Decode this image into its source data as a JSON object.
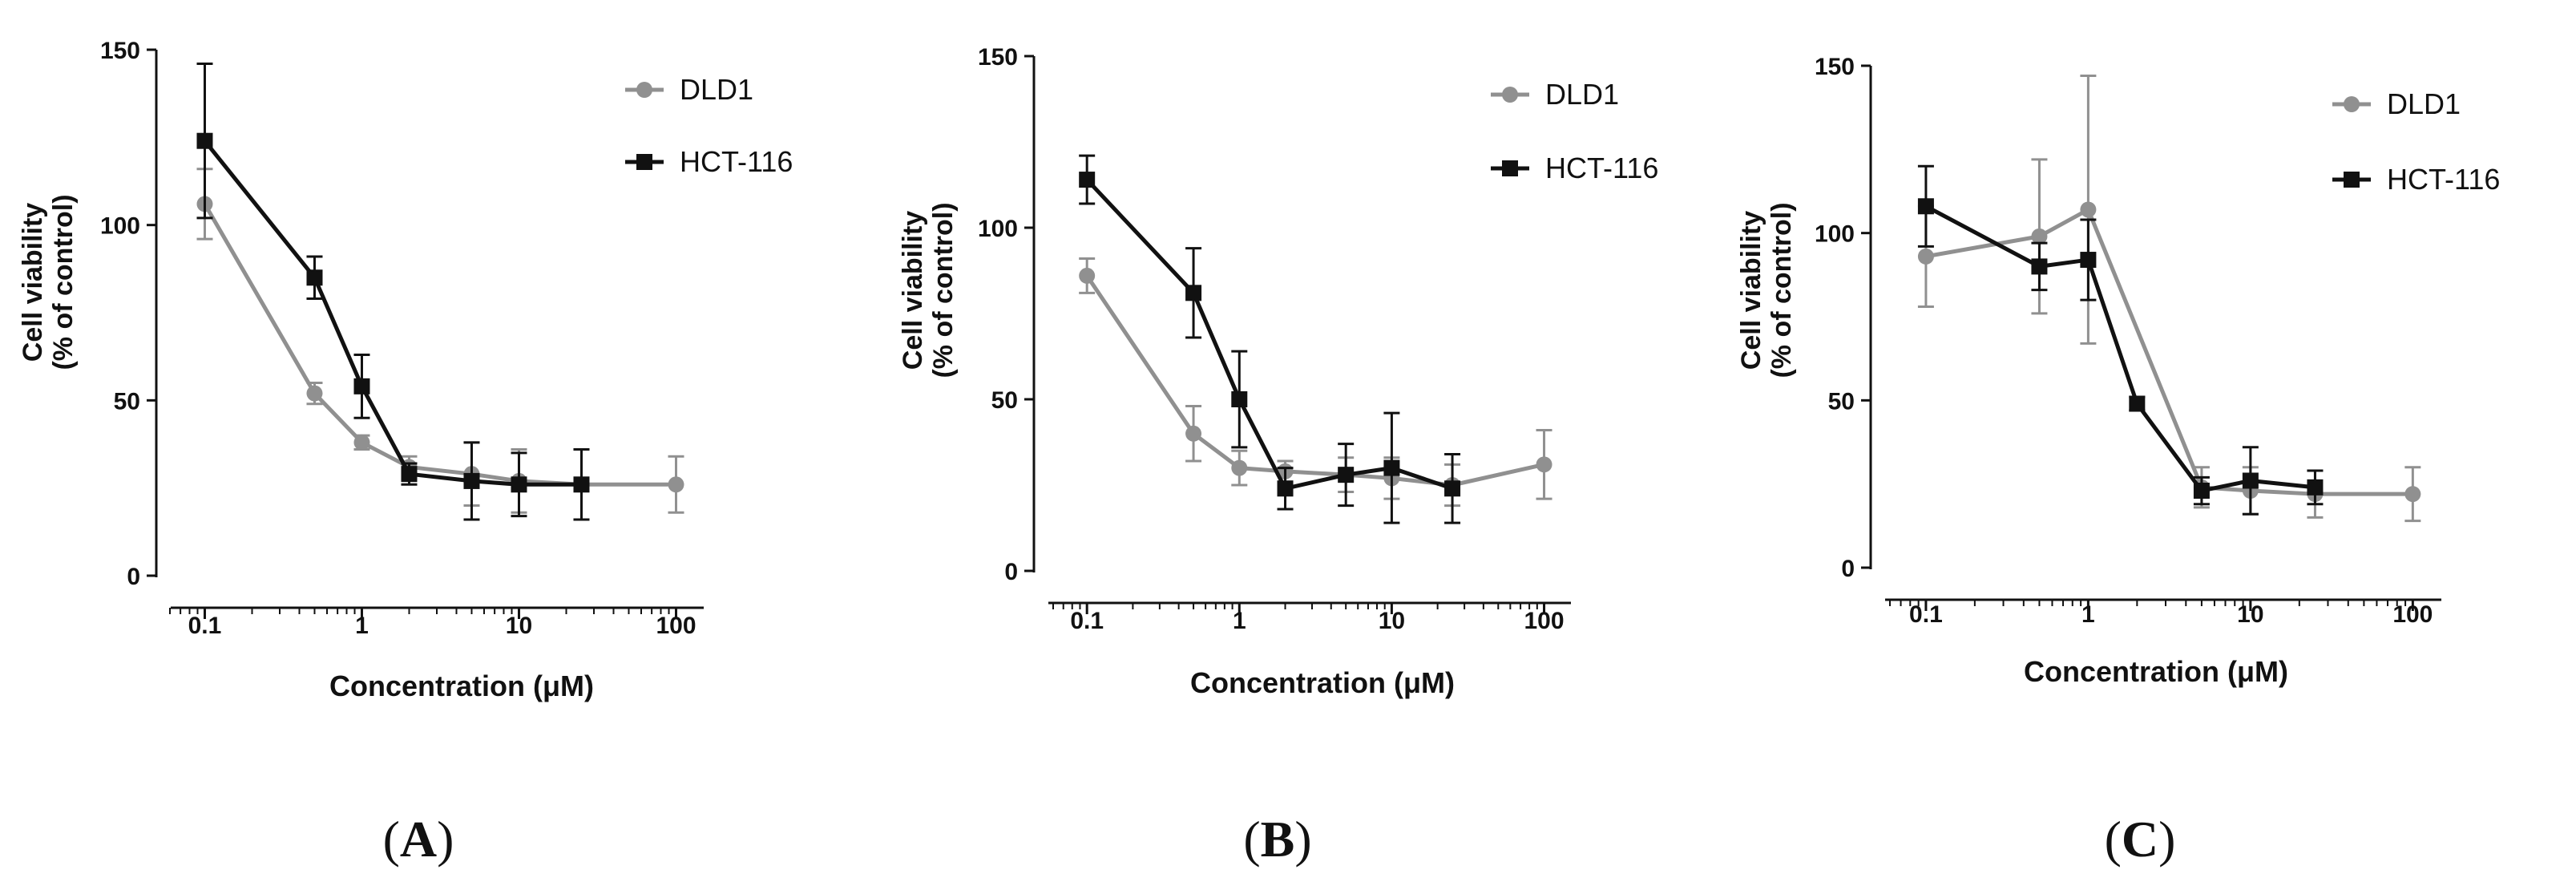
{
  "figure": {
    "styles": {
      "DLD1": {
        "color": "#909090",
        "marker": "circle"
      },
      "HCT-116": {
        "color": "#111111",
        "marker": "square"
      }
    }
  },
  "chart_data": [
    {
      "type": "line",
      "panel_label_open": "(",
      "panel_label": "A",
      "panel_label_close": ")",
      "xlabel": "Concentration (μM)",
      "ylabel_line1": "Cell viability",
      "ylabel_line2": "(% of control)",
      "xscale": "log",
      "xlim": [
        0.06,
        150
      ],
      "ylim": [
        0,
        150
      ],
      "x_ticks": [
        0.1,
        1,
        10,
        100
      ],
      "x_tick_labels": [
        "0.1",
        "1",
        "10",
        "100"
      ],
      "y_ticks": [
        0,
        50,
        100,
        150
      ],
      "y_tick_labels": [
        "0",
        "50",
        "100",
        "150"
      ],
      "legend": [
        "DLD1",
        "HCT-116"
      ],
      "series": [
        {
          "name": "DLD1",
          "x": [
            0.1,
            0.5,
            1,
            2,
            5,
            10,
            25,
            100
          ],
          "values": [
            106,
            52,
            38,
            31,
            29,
            27,
            26,
            26
          ],
          "error": [
            10,
            3,
            2,
            3,
            9,
            9,
            10,
            8
          ]
        },
        {
          "name": "HCT-116",
          "x": [
            0.1,
            0.5,
            1,
            2,
            5,
            10,
            25
          ],
          "values": [
            124,
            85,
            54,
            29,
            27,
            26,
            26
          ],
          "error": [
            22,
            6,
            9,
            3,
            11,
            9,
            10
          ]
        }
      ]
    },
    {
      "type": "line",
      "panel_label_open": "(",
      "panel_label": "B",
      "panel_label_close": ")",
      "xlabel": "Concentration (μM)",
      "ylabel_line1": "Cell viability",
      "ylabel_line2": "(% of control)",
      "xscale": "log",
      "xlim": [
        0.06,
        150
      ],
      "ylim": [
        0,
        150
      ],
      "x_ticks": [
        0.1,
        1,
        10,
        100
      ],
      "x_tick_labels": [
        "0.1",
        "1",
        "10",
        "100"
      ],
      "y_ticks": [
        0,
        50,
        100,
        150
      ],
      "y_tick_labels": [
        "0",
        "50",
        "100",
        "150"
      ],
      "legend": [
        "DLD1",
        "HCT-116"
      ],
      "series": [
        {
          "name": "DLD1",
          "x": [
            0.1,
            0.5,
            1,
            2,
            5,
            10,
            25,
            100
          ],
          "values": [
            86,
            40,
            30,
            29,
            28,
            27,
            25,
            31
          ],
          "error": [
            5,
            8,
            5,
            3,
            5,
            6,
            6,
            10
          ]
        },
        {
          "name": "HCT-116",
          "x": [
            0.1,
            0.5,
            1,
            2,
            5,
            10,
            25
          ],
          "values": [
            114,
            81,
            50,
            24,
            28,
            30,
            24
          ],
          "error": [
            7,
            13,
            14,
            6,
            9,
            16,
            10
          ]
        }
      ]
    },
    {
      "type": "line",
      "panel_label_open": "(",
      "panel_label": "C",
      "panel_label_close": ")",
      "xlabel": "Concentration (μM)",
      "ylabel_line1": "Cell viability",
      "ylabel_line2": "(% of control)",
      "xscale": "log",
      "xlim": [
        0.06,
        150
      ],
      "ylim": [
        0,
        150
      ],
      "x_ticks": [
        0.1,
        1,
        10,
        100
      ],
      "x_tick_labels": [
        "0.1",
        "1",
        "10",
        "100"
      ],
      "y_ticks": [
        0,
        50,
        100,
        150
      ],
      "y_tick_labels": [
        "0",
        "50",
        "100",
        "150"
      ],
      "legend": [
        "DLD1",
        "HCT-116"
      ],
      "series": [
        {
          "name": "DLD1",
          "x": [
            0.1,
            0.5,
            1,
            5,
            10,
            25,
            100
          ],
          "values": [
            93,
            99,
            107,
            24,
            23,
            22,
            22
          ],
          "error": [
            15,
            23,
            40,
            6,
            7,
            7,
            8
          ]
        },
        {
          "name": "HCT-116",
          "x": [
            0.1,
            0.5,
            1,
            2,
            5,
            10,
            25
          ],
          "values": [
            108,
            90,
            92,
            49,
            23,
            26,
            24
          ],
          "error": [
            12,
            7,
            12,
            2,
            4,
            10,
            5
          ]
        }
      ]
    }
  ]
}
